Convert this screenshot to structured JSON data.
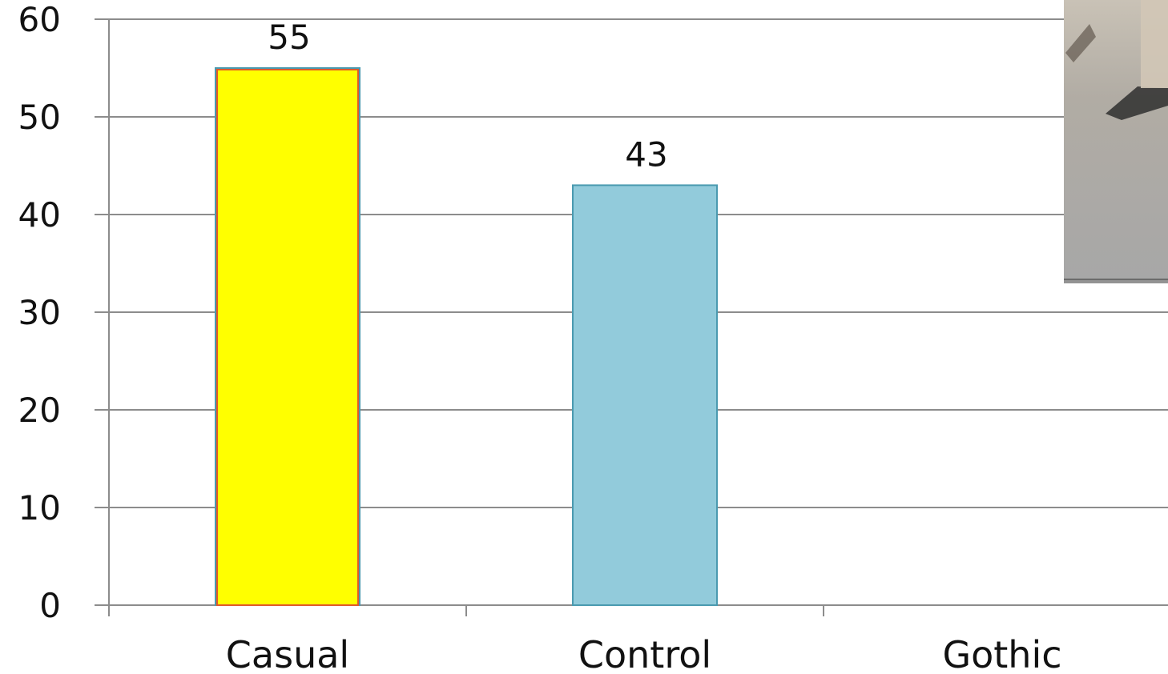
{
  "chart_data": {
    "type": "bar",
    "categories": [
      "Casual",
      "Control",
      "Gothic"
    ],
    "values": [
      55,
      43,
      null
    ],
    "data_labels": [
      "55",
      "43",
      ""
    ],
    "bar_colors": [
      "#ffff00",
      "#92cbdb",
      "#92cbdb"
    ],
    "bar_outline": "#4a9ab0",
    "casual_inner_edge": "#e05a2a",
    "ylim": [
      0,
      60
    ],
    "yticks": [
      0,
      10,
      20,
      30,
      40,
      50,
      60
    ],
    "ytick_labels": [
      "0",
      "10",
      "20",
      "30",
      "40",
      "50",
      "60"
    ],
    "grid": true,
    "grid_color": "#8c8c8c",
    "title": "",
    "xlabel": "",
    "ylabel": ""
  },
  "overlay": {
    "photo_fragment": "partial photograph cropped at the top-right edge"
  }
}
